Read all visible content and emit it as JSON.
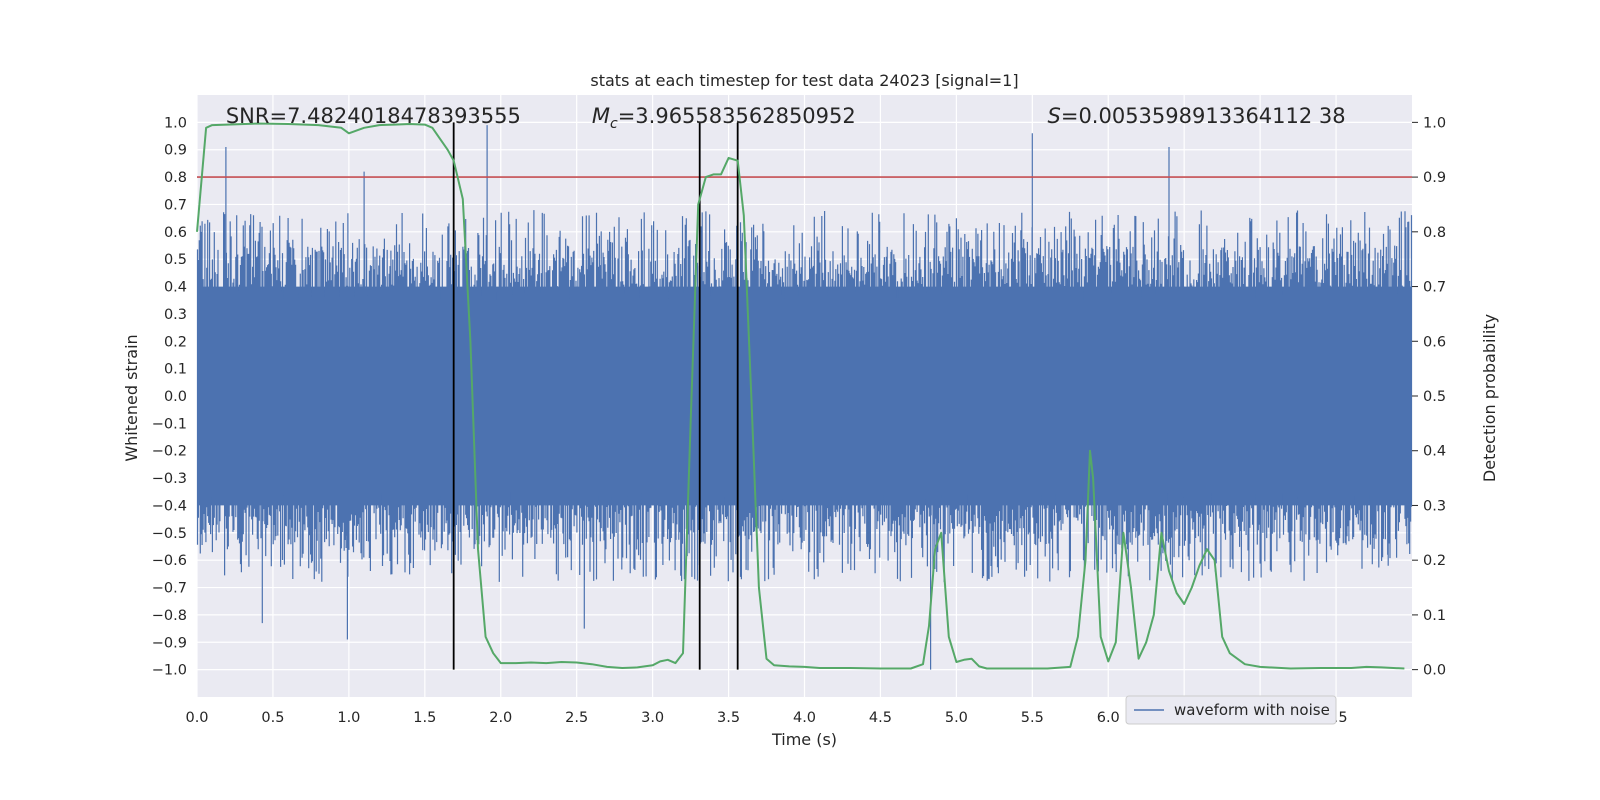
{
  "chart_data": {
    "type": "line",
    "title": "stats at each timestep for test data 24023 [signal=1]",
    "xlabel": "Time (s)",
    "ylabel": "Whitened strain",
    "y2label": "Detection probability",
    "xlim": [
      0.0,
      8.0
    ],
    "ylim": [
      -1.1,
      1.1
    ],
    "y2lim": [
      -0.05,
      1.05
    ],
    "xticks": [
      "0.0",
      "0.5",
      "1.0",
      "1.5",
      "2.0",
      "2.5",
      "3.0",
      "3.5",
      "4.0",
      "4.5",
      "5.0",
      "5.5",
      "6.0",
      "6.5",
      "7.0",
      "7.5"
    ],
    "yticks": [
      "1.0",
      "0.9",
      "0.8",
      "0.7",
      "0.6",
      "0.5",
      "0.4",
      "0.3",
      "0.2",
      "0.1",
      "0.0",
      "−0.1",
      "−0.2",
      "−0.3",
      "−0.4",
      "−0.5",
      "−0.6",
      "−0.7",
      "−0.8",
      "−0.9",
      "−1.0"
    ],
    "y2ticks": [
      "1.0",
      "0.9",
      "0.8",
      "0.7",
      "0.6",
      "0.5",
      "0.4",
      "0.3",
      "0.2",
      "0.1",
      "0.0"
    ],
    "grid": true,
    "legend_position": "lower-right",
    "annotations": {
      "snr": "SNR=7.4824018478393555",
      "mc_symbol": "M",
      "mc_sub": "c",
      "mc_value": "=3.965583562850952",
      "s_symbol": "S",
      "s_value": "=0.0053598913364112 38"
    },
    "threshold": {
      "value": 0.9,
      "axis": "y2",
      "color": "#c44e52"
    },
    "vlines_x": [
      1.69,
      3.31,
      3.56
    ],
    "series": [
      {
        "name": "waveform with noise",
        "axis": "y1",
        "color": "#4c72b0",
        "style": "dense-noise",
        "band": [
          -0.4,
          0.4
        ],
        "spike_peaks": [
          {
            "x": 0.19,
            "y": 0.91
          },
          {
            "x": 0.43,
            "y": -0.83
          },
          {
            "x": 0.99,
            "y": -0.89
          },
          {
            "x": 1.1,
            "y": 0.82
          },
          {
            "x": 1.91,
            "y": 0.99
          },
          {
            "x": 2.55,
            "y": -0.85
          },
          {
            "x": 3.31,
            "y": 0.85
          },
          {
            "x": 4.83,
            "y": -1.0
          },
          {
            "x": 5.5,
            "y": 0.96
          },
          {
            "x": 6.4,
            "y": 0.91
          },
          {
            "x": 7.84,
            "y": -0.58
          }
        ],
        "legend": "waveform with noise"
      },
      {
        "name": "",
        "axis": "y2",
        "color": "#55a868",
        "x": [
          0.0,
          0.06,
          0.1,
          0.2,
          0.4,
          0.6,
          0.8,
          0.95,
          1.0,
          1.1,
          1.2,
          1.3,
          1.4,
          1.5,
          1.55,
          1.6,
          1.65,
          1.69,
          1.75,
          1.8,
          1.85,
          1.9,
          1.95,
          2.0,
          2.1,
          2.2,
          2.3,
          2.4,
          2.5,
          2.6,
          2.7,
          2.8,
          2.9,
          3.0,
          3.05,
          3.1,
          3.15,
          3.2,
          3.25,
          3.3,
          3.35,
          3.4,
          3.45,
          3.5,
          3.56,
          3.6,
          3.65,
          3.7,
          3.75,
          3.8,
          3.9,
          4.0,
          4.1,
          4.3,
          4.5,
          4.7,
          4.78,
          4.82,
          4.86,
          4.9,
          4.95,
          5.0,
          5.05,
          5.1,
          5.15,
          5.2,
          5.4,
          5.6,
          5.75,
          5.8,
          5.85,
          5.88,
          5.9,
          5.95,
          6.0,
          6.05,
          6.1,
          6.15,
          6.2,
          6.25,
          6.3,
          6.35,
          6.4,
          6.45,
          6.5,
          6.55,
          6.6,
          6.65,
          6.7,
          6.75,
          6.8,
          6.9,
          7.0,
          7.2,
          7.4,
          7.6,
          7.7,
          7.8,
          7.95
        ],
        "values": [
          0.8,
          0.99,
          0.995,
          0.996,
          0.998,
          0.997,
          0.995,
          0.99,
          0.98,
          0.99,
          0.995,
          0.996,
          0.997,
          0.996,
          0.99,
          0.97,
          0.95,
          0.93,
          0.86,
          0.6,
          0.22,
          0.06,
          0.03,
          0.012,
          0.012,
          0.013,
          0.012,
          0.014,
          0.013,
          0.01,
          0.005,
          0.003,
          0.004,
          0.008,
          0.015,
          0.018,
          0.012,
          0.03,
          0.45,
          0.85,
          0.9,
          0.905,
          0.905,
          0.935,
          0.93,
          0.83,
          0.5,
          0.15,
          0.02,
          0.008,
          0.006,
          0.005,
          0.003,
          0.003,
          0.002,
          0.002,
          0.01,
          0.08,
          0.22,
          0.25,
          0.06,
          0.014,
          0.018,
          0.02,
          0.006,
          0.002,
          0.002,
          0.002,
          0.005,
          0.06,
          0.2,
          0.4,
          0.35,
          0.06,
          0.015,
          0.05,
          0.25,
          0.15,
          0.02,
          0.05,
          0.1,
          0.25,
          0.18,
          0.14,
          0.12,
          0.15,
          0.19,
          0.22,
          0.2,
          0.06,
          0.03,
          0.01,
          0.005,
          0.002,
          0.003,
          0.003,
          0.005,
          0.004,
          0.002
        ]
      }
    ]
  }
}
